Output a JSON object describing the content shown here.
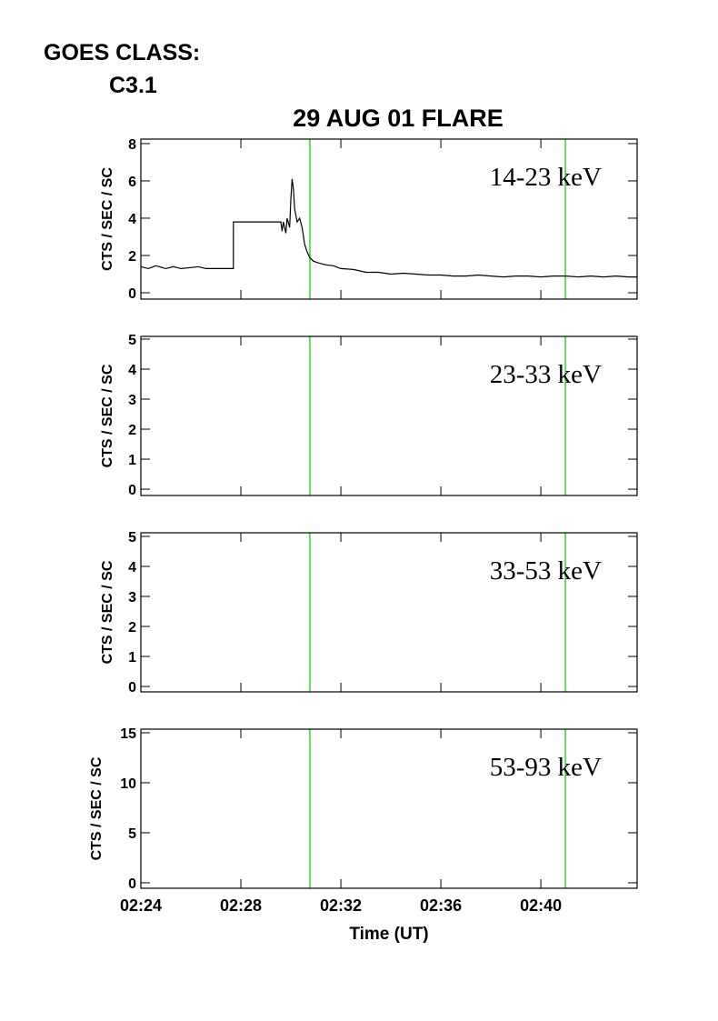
{
  "header": {
    "label": "GOES CLASS:",
    "goes_class": "C3.1"
  },
  "chart_data": [
    {
      "type": "line",
      "title": "29 AUG 01 FLARE",
      "ylabel": "CTS / SEC / SC",
      "annotation": "14-23 keV",
      "x": [
        144.0,
        144.3,
        144.6,
        145.0,
        145.3,
        145.6,
        146.0,
        146.3,
        146.6,
        147.0,
        147.3,
        147.7,
        147.7,
        149.6,
        149.65,
        149.7,
        149.8,
        149.85,
        149.95,
        150.0,
        150.05,
        150.1,
        150.15,
        150.25,
        150.35,
        150.45,
        150.55,
        150.65,
        150.75,
        150.9,
        151.1,
        151.4,
        151.7,
        152.0,
        152.5,
        153.0,
        153.5,
        154.0,
        154.5,
        155.0,
        155.5,
        156.0,
        156.5,
        157.0,
        157.5,
        158.0,
        158.5,
        159.0,
        159.5,
        160.0,
        160.5,
        161.0,
        161.5,
        162.0,
        162.5,
        163.0,
        163.5,
        163.85
      ],
      "series": [
        {
          "color": "#000000",
          "values": [
            1.4,
            1.3,
            1.45,
            1.3,
            1.4,
            1.3,
            1.35,
            1.4,
            1.3,
            1.3,
            1.3,
            1.3,
            3.8,
            3.8,
            3.3,
            3.8,
            3.2,
            4.0,
            3.5,
            5.0,
            6.1,
            5.6,
            4.5,
            3.8,
            4.0,
            3.5,
            2.6,
            2.2,
            1.9,
            1.7,
            1.6,
            1.5,
            1.45,
            1.3,
            1.25,
            1.1,
            1.1,
            1.0,
            1.05,
            1.0,
            0.95,
            0.95,
            0.9,
            0.9,
            0.95,
            0.9,
            0.85,
            0.9,
            0.9,
            0.85,
            0.9,
            0.9,
            0.85,
            0.9,
            0.85,
            0.9,
            0.85,
            0.85
          ]
        }
      ],
      "xlim": [
        144,
        163.85
      ],
      "ylim": [
        -0.34,
        8.24
      ],
      "yticks": [
        0,
        2,
        4,
        6,
        8
      ],
      "vlines": [
        150.76,
        160.98
      ],
      "vline_color": "#00cc00"
    },
    {
      "type": "line",
      "ylabel": "CTS / SEC / SC",
      "annotation": "23-33 keV",
      "series": [],
      "xlim": [
        144,
        163.85
      ],
      "ylim": [
        -0.21,
        5.09
      ],
      "yticks": [
        0,
        1,
        2,
        3,
        4,
        5
      ],
      "vlines": [
        150.76,
        160.98
      ],
      "vline_color": "#00cc00"
    },
    {
      "type": "line",
      "ylabel": "CTS / SEC / SC",
      "annotation": "33-53 keV",
      "series": [],
      "xlim": [
        144,
        163.85
      ],
      "ylim": [
        -0.18,
        5.12
      ],
      "yticks": [
        0,
        1,
        2,
        3,
        4,
        5
      ],
      "vlines": [
        150.76,
        160.98
      ],
      "vline_color": "#00cc00"
    },
    {
      "type": "line",
      "ylabel": "CTS / SEC / SC",
      "annotation": "53-93 keV",
      "xlabel": "Time (UT)",
      "series": [],
      "xlim": [
        144,
        163.85
      ],
      "ylim": [
        -0.55,
        15.36
      ],
      "yticks": [
        0,
        5,
        10,
        15
      ],
      "xticks": [
        {
          "value": 144,
          "label": "02:24"
        },
        {
          "value": 148,
          "label": "02:28"
        },
        {
          "value": 152,
          "label": "02:32"
        },
        {
          "value": 156,
          "label": "02:36"
        },
        {
          "value": 160,
          "label": "02:40"
        }
      ],
      "vlines": [
        150.76,
        160.98
      ],
      "vline_color": "#00cc00"
    }
  ]
}
